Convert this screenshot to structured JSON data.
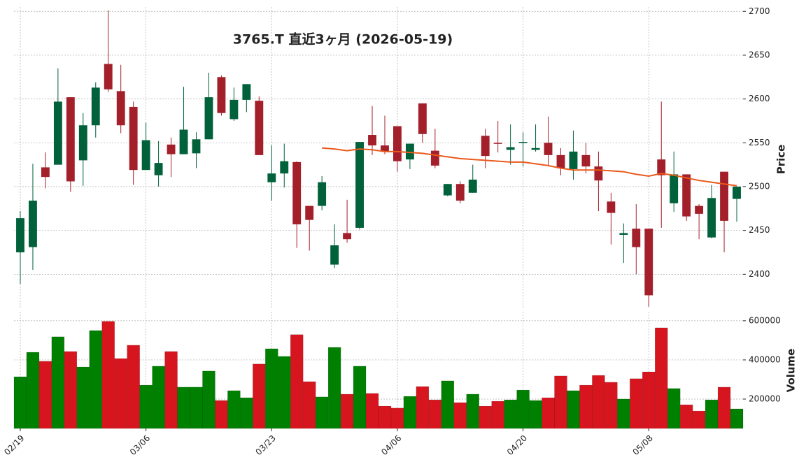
{
  "chart_data": {
    "type": "candlestick",
    "title": "3765.T  直近3ヶ月 (2026-05-19)",
    "categories": [
      "02/19",
      null,
      null,
      null,
      null,
      null,
      null,
      null,
      null,
      null,
      "03/06",
      null,
      null,
      null,
      null,
      null,
      null,
      null,
      null,
      null,
      "03/23",
      null,
      null,
      null,
      null,
      null,
      null,
      null,
      null,
      null,
      "04/06",
      null,
      null,
      null,
      null,
      null,
      null,
      null,
      null,
      null,
      "04/20",
      null,
      null,
      null,
      null,
      null,
      null,
      null,
      null,
      null,
      "05/08",
      null,
      null,
      null,
      null,
      null,
      null,
      null
    ],
    "open": [
      2425,
      2431,
      2522,
      2525,
      2602,
      2530,
      2570,
      2640,
      2609,
      2591,
      2519,
      2513,
      2548,
      2537,
      2538,
      2554,
      2625,
      2577,
      2599,
      2598,
      2505,
      2515,
      2528,
      2478,
      2478,
      2411,
      2447,
      2453,
      2559,
      2547,
      2569,
      2531,
      2595,
      2541,
      2490,
      2503,
      2493,
      2558,
      2550,
      2542,
      2550,
      2542,
      2550,
      2536,
      2520,
      2536,
      2523,
      2483,
      2445,
      2452,
      2452,
      2531,
      2481,
      2514,
      2478,
      2442,
      2517,
      2486
    ],
    "high": [
      2472,
      2526,
      2539,
      2635,
      2602,
      2584,
      2619,
      2701,
      2639,
      2597,
      2573,
      2552,
      2556,
      2614,
      2562,
      2630,
      2627,
      2613,
      2617,
      2603,
      2547,
      2549,
      2529,
      2478,
      2512,
      2457,
      2485,
      2551,
      2592,
      2581,
      2569,
      2549,
      2595,
      2566,
      2503,
      2506,
      2525,
      2566,
      2575,
      2571,
      2562,
      2571,
      2580,
      2544,
      2564,
      2550,
      2540,
      2493,
      2458,
      2480,
      2452,
      2597,
      2540,
      2514,
      2480,
      2502,
      2517,
      2500
    ],
    "low": [
      2389,
      2405,
      2498,
      2525,
      2494,
      2501,
      2556,
      2608,
      2561,
      2502,
      2519,
      2500,
      2511,
      2537,
      2521,
      2554,
      2581,
      2575,
      2585,
      2536,
      2484,
      2499,
      2430,
      2427,
      2473,
      2407,
      2436,
      2451,
      2536,
      2537,
      2517,
      2520,
      2550,
      2521,
      2489,
      2481,
      2493,
      2521,
      2539,
      2525,
      2523,
      2540,
      2524,
      2513,
      2508,
      2515,
      2472,
      2434,
      2413,
      2400,
      2363,
      2453,
      2471,
      2461,
      2440,
      2441,
      2425,
      2460
    ],
    "close": [
      2464,
      2484,
      2511,
      2597,
      2506,
      2570,
      2613,
      2611,
      2570,
      2519,
      2553,
      2527,
      2537,
      2565,
      2554,
      2602,
      2584,
      2599,
      2617,
      2536,
      2515,
      2529,
      2457,
      2462,
      2505,
      2433,
      2440,
      2551,
      2547,
      2540,
      2529,
      2549,
      2560,
      2524,
      2503,
      2484,
      2508,
      2535,
      2549,
      2545,
      2551,
      2544,
      2536,
      2521,
      2540,
      2523,
      2507,
      2470,
      2447,
      2431,
      2376,
      2513,
      2514,
      2466,
      2469,
      2487,
      2461,
      2500
    ],
    "up_color": "#00613b",
    "down_color": "#a31f2a",
    "ylim": [
      2362,
      2705
    ],
    "yticks": [
      2400,
      2450,
      2500,
      2550,
      2600,
      2650,
      2700
    ],
    "ylabel": "Price",
    "ma": {
      "color": "#ea5a1c",
      "values": [
        null,
        null,
        null,
        null,
        null,
        null,
        null,
        null,
        null,
        null,
        null,
        null,
        null,
        null,
        null,
        null,
        null,
        null,
        null,
        null,
        null,
        null,
        null,
        null,
        2544,
        2543,
        2541,
        2543,
        2542,
        2540,
        2540,
        2539,
        2538,
        2536,
        2534,
        2532,
        2531,
        2530,
        2529,
        2528,
        2528,
        2526,
        2524,
        2521,
        2519,
        2519,
        2519,
        2518,
        2517,
        2514,
        2512,
        2515,
        2513,
        2510,
        2507,
        2505,
        2503,
        2501
      ]
    },
    "volume": {
      "values": [
        314000,
        439000,
        393000,
        518000,
        443000,
        364000,
        550000,
        597000,
        407000,
        475000,
        271000,
        368000,
        443000,
        261000,
        261000,
        343000,
        193000,
        243000,
        207000,
        379000,
        457000,
        418000,
        529000,
        289000,
        211000,
        464000,
        225000,
        368000,
        229000,
        164000,
        154000,
        214000,
        264000,
        196000,
        293000,
        182000,
        225000,
        164000,
        189000,
        196000,
        246000,
        193000,
        207000,
        318000,
        243000,
        271000,
        321000,
        286000,
        200000,
        304000,
        339000,
        564000,
        254000,
        171000,
        139000,
        196000,
        261000,
        150000
      ],
      "up_color": "#008000",
      "down_color": "#d7151f",
      "ylim": [
        50000,
        646000
      ],
      "yticks": [
        200000,
        400000,
        600000
      ],
      "ylabel": "Volume"
    },
    "grid": true
  }
}
